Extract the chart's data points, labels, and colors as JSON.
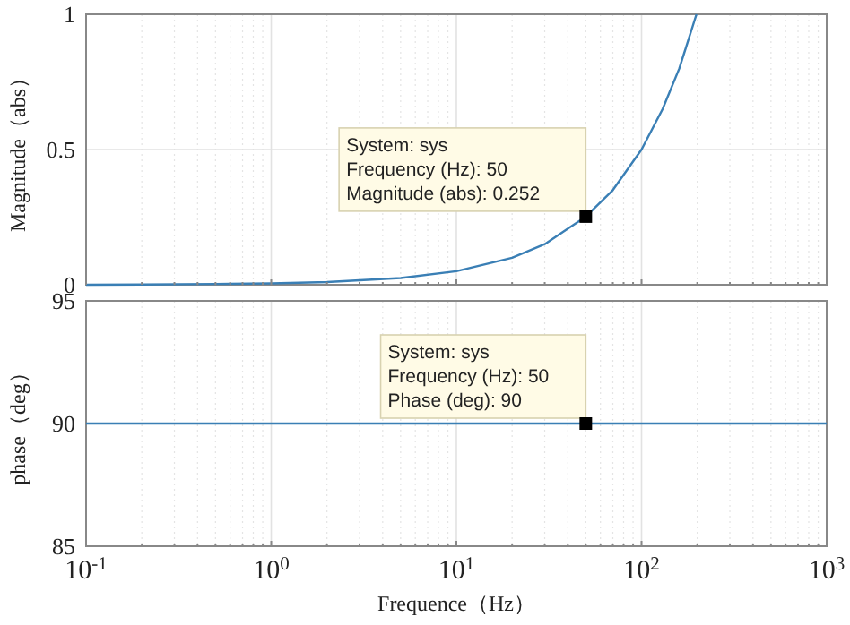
{
  "chart_data": [
    {
      "type": "line",
      "ylabel": "Magnitude（abs）",
      "x": [
        0.1,
        0.2,
        0.5,
        1,
        2,
        5,
        10,
        20,
        30,
        50,
        70,
        100,
        130,
        160,
        198
      ],
      "series": [
        {
          "color": "#3a7fb5",
          "values": [
            0,
            0.001,
            0.003,
            0.005,
            0.01,
            0.025,
            0.05,
            0.1,
            0.15,
            0.252,
            0.35,
            0.5,
            0.65,
            0.8,
            1
          ]
        }
      ],
      "log": "x",
      "xlim": [
        0.1,
        1000
      ],
      "ylim": [
        0,
        1
      ],
      "yticks": [
        0,
        0.5,
        1
      ],
      "xticks": [
        0.1,
        1,
        10,
        100,
        1000
      ],
      "tick_labels": "y",
      "grid": true,
      "marker": "none",
      "annotations": [
        {
          "text": "System: sys\nFrequency (Hz): 50\nMagnitude (abs): 0.252",
          "x": 50,
          "y": 0.252
        }
      ]
    },
    {
      "type": "line",
      "xlabel": "Frequence（Hz）",
      "ylabel": "phase（deg）",
      "x": [
        0.1,
        1000
      ],
      "series": [
        {
          "color": "#3a7fb5",
          "values": [
            90,
            90
          ]
        }
      ],
      "log": "x",
      "xlim": [
        0.1,
        1000
      ],
      "ylim": [
        85,
        95
      ],
      "yticks": [
        85,
        90,
        95
      ],
      "xticks": [
        {
          "value": 0.1,
          "label": "10$^{-1}$"
        },
        {
          "value": 1,
          "label": "10$^{0}$"
        },
        {
          "value": 10,
          "label": "10$^{1}$"
        },
        {
          "value": 100,
          "label": "10$^{2}$"
        },
        {
          "value": 1000,
          "label": "10$^{3}$"
        }
      ],
      "grid": true,
      "marker": "none",
      "annotations": [
        {
          "text": "System: sys\nFrequency (Hz): 50\nPhase (deg): 90",
          "x": 50,
          "y": 90
        }
      ]
    }
  ]
}
